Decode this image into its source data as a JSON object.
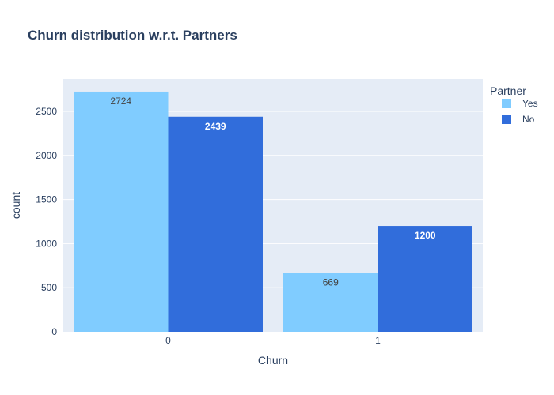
{
  "chart_data": {
    "type": "bar",
    "title": "Churn distribution w.r.t. Partners",
    "xlabel": "Churn",
    "ylabel": "count",
    "categories": [
      "0",
      "1"
    ],
    "series": [
      {
        "name": "Yes",
        "values": [
          2724,
          669
        ],
        "color": "#80ccff"
      },
      {
        "name": "No",
        "values": [
          2439,
          1200
        ],
        "color": "#316ddb"
      }
    ],
    "yticks": [
      0,
      500,
      1000,
      1500,
      2000,
      2500
    ],
    "ylim": [
      0,
      2867
    ],
    "grid": true,
    "legend": {
      "title": "Partner",
      "placement": "top-right"
    },
    "data_label_colors": [
      "#444444",
      "#ffffff"
    ]
  },
  "colors": {
    "plot_background": "#e5ecf6",
    "grid": "#ffffff",
    "text": "#2a3f5f"
  }
}
